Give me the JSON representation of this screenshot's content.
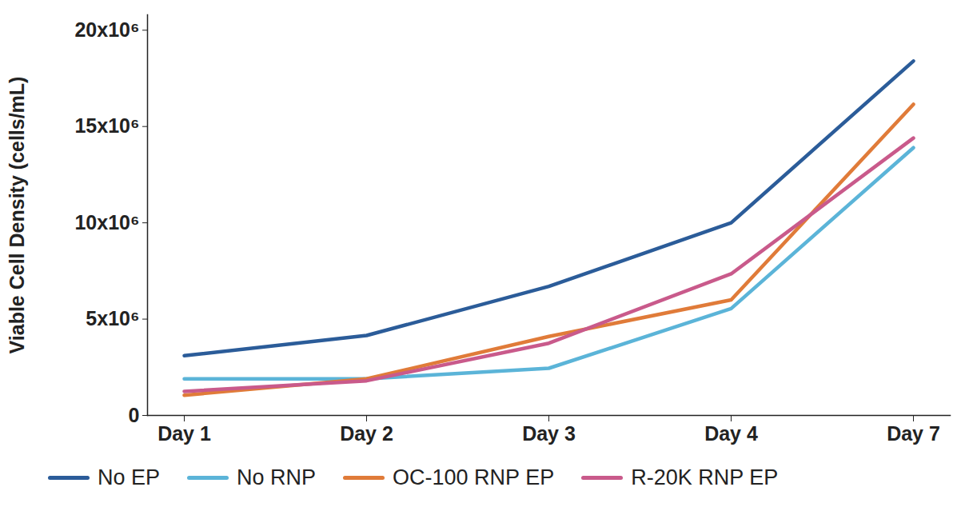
{
  "chart_data": {
    "type": "line",
    "y_label": "Viable Cell Density (cells/mL)",
    "categories": [
      "Day 1",
      "Day 2",
      "Day 3",
      "Day 4",
      "Day 7"
    ],
    "series": [
      {
        "name": "No EP",
        "color": "#2b5c99",
        "values": [
          3100000,
          4150000,
          6700000,
          10000000,
          18400000
        ]
      },
      {
        "name": "No RNP",
        "color": "#5bb4d8",
        "values": [
          1900000,
          1900000,
          2450000,
          5550000,
          13900000
        ]
      },
      {
        "name": "OC-100 RNP EP",
        "color": "#e07b39",
        "values": [
          1050000,
          1900000,
          4100000,
          6000000,
          16150000
        ]
      },
      {
        "name": "R-20K RNP EP",
        "color": "#c95a8b",
        "values": [
          1250000,
          1800000,
          3750000,
          7350000,
          14400000
        ]
      }
    ],
    "ylim": [
      0,
      20800000
    ],
    "yticks": [
      0,
      {
        "value": 5000000,
        "label": "5x10⁶"
      },
      {
        "value": 10000000,
        "label": "10x10⁶"
      },
      {
        "value": 15000000,
        "label": "15x10⁶"
      },
      {
        "value": 20000000,
        "label": "20x10⁶"
      }
    ],
    "legend": "bottom",
    "grid": false
  }
}
